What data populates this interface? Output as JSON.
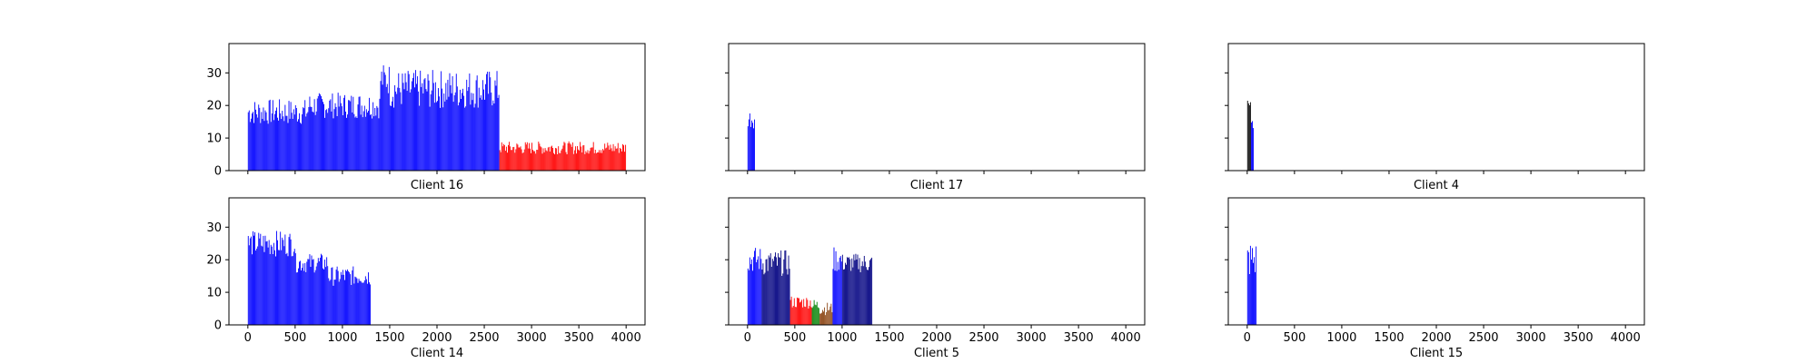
{
  "chart_data": [
    {
      "type": "bar",
      "xlabel": "Client 16",
      "xlim": [
        -200,
        4200
      ],
      "ylim": [
        0,
        39
      ],
      "xticks": [
        0,
        500,
        1000,
        1500,
        2000,
        2500,
        3000,
        3500,
        4000
      ],
      "yticks": [
        0,
        10,
        20,
        30
      ],
      "show_xtick_labels": false,
      "show_ytick_labels": true,
      "segments": [
        {
          "color": "#0000ff",
          "x_start": 0,
          "x_end": 640,
          "step": 10,
          "base": 18,
          "amp": 4
        },
        {
          "color": "#0000ff",
          "x_start": 640,
          "x_end": 1400,
          "step": 10,
          "base": 20,
          "amp": 4
        },
        {
          "color": "#0000ff",
          "x_start": 1400,
          "x_end": 1500,
          "step": 10,
          "base": 28,
          "amp": 5
        },
        {
          "color": "#0000ff",
          "x_start": 1500,
          "x_end": 2660,
          "step": 10,
          "base": 25,
          "amp": 6
        },
        {
          "color": "#ff0000",
          "x_start": 2660,
          "x_end": 4000,
          "step": 10,
          "base": 7,
          "amp": 2
        }
      ]
    },
    {
      "type": "bar",
      "xlabel": "Client 17",
      "xlim": [
        -200,
        4200
      ],
      "ylim": [
        0,
        39
      ],
      "xticks": [
        0,
        500,
        1000,
        1500,
        2000,
        2500,
        3000,
        3500,
        4000
      ],
      "yticks": [
        0,
        10,
        20,
        30
      ],
      "show_xtick_labels": false,
      "show_ytick_labels": false,
      "segments": [
        {
          "color": "#0000ff",
          "x_start": 0,
          "x_end": 80,
          "step": 10,
          "base": 16,
          "amp": 3
        }
      ]
    },
    {
      "type": "bar",
      "xlabel": "Client 4",
      "xlim": [
        -200,
        4200
      ],
      "ylim": [
        0,
        39
      ],
      "xticks": [
        0,
        500,
        1000,
        1500,
        2000,
        2500,
        3000,
        3500,
        4000
      ],
      "yticks": [
        0,
        10,
        20,
        30
      ],
      "show_xtick_labels": false,
      "show_ytick_labels": false,
      "segments": [
        {
          "color": "#000000",
          "x_start": 0,
          "x_end": 40,
          "step": 10,
          "base": 21,
          "amp": 1
        },
        {
          "color": "#0000ff",
          "x_start": 40,
          "x_end": 70,
          "step": 10,
          "base": 15,
          "amp": 2
        }
      ]
    },
    {
      "type": "bar",
      "xlabel": "Client 14",
      "xlim": [
        -200,
        4200
      ],
      "ylim": [
        0,
        39
      ],
      "xticks": [
        0,
        500,
        1000,
        1500,
        2000,
        2500,
        3000,
        3500,
        4000
      ],
      "yticks": [
        0,
        10,
        20,
        30
      ],
      "show_xtick_labels": true,
      "show_ytick_labels": true,
      "segments": [
        {
          "color": "#0000ff",
          "x_start": 0,
          "x_end": 500,
          "step": 10,
          "base": 25,
          "amp": 4
        },
        {
          "color": "#0000ff",
          "x_start": 500,
          "x_end": 850,
          "step": 10,
          "base": 19,
          "amp": 3
        },
        {
          "color": "#0000ff",
          "x_start": 850,
          "x_end": 1300,
          "step": 10,
          "base": 15,
          "amp": 3
        }
      ]
    },
    {
      "type": "bar",
      "xlabel": "Client 5",
      "xlim": [
        -200,
        4200
      ],
      "ylim": [
        0,
        39
      ],
      "xticks": [
        0,
        500,
        1000,
        1500,
        2000,
        2500,
        3000,
        3500,
        4000
      ],
      "yticks": [
        0,
        10,
        20,
        30
      ],
      "show_xtick_labels": true,
      "show_ytick_labels": false,
      "segments": [
        {
          "color": "#0000ff",
          "x_start": 0,
          "x_end": 150,
          "step": 10,
          "base": 20,
          "amp": 4
        },
        {
          "color": "#000080",
          "x_start": 150,
          "x_end": 450,
          "step": 10,
          "base": 19,
          "amp": 4
        },
        {
          "color": "#ff0000",
          "x_start": 450,
          "x_end": 680,
          "step": 10,
          "base": 7,
          "amp": 2
        },
        {
          "color": "#008000",
          "x_start": 680,
          "x_end": 760,
          "step": 10,
          "base": 6,
          "amp": 2
        },
        {
          "color": "#8b4513",
          "x_start": 760,
          "x_end": 900,
          "step": 10,
          "base": 5,
          "amp": 2
        },
        {
          "color": "#0000ff",
          "x_start": 900,
          "x_end": 1000,
          "step": 10,
          "base": 20,
          "amp": 4
        },
        {
          "color": "#000080",
          "x_start": 1000,
          "x_end": 1320,
          "step": 10,
          "base": 19,
          "amp": 3
        }
      ]
    },
    {
      "type": "bar",
      "xlabel": "Client 15",
      "xlim": [
        -200,
        4200
      ],
      "ylim": [
        0,
        39
      ],
      "xticks": [
        0,
        500,
        1000,
        1500,
        2000,
        2500,
        3000,
        3500,
        4000
      ],
      "yticks": [
        0,
        10,
        20,
        30
      ],
      "show_xtick_labels": true,
      "show_ytick_labels": false,
      "segments": [
        {
          "color": "#0000ff",
          "x_start": 0,
          "x_end": 100,
          "step": 10,
          "base": 20,
          "amp": 6
        }
      ]
    }
  ]
}
